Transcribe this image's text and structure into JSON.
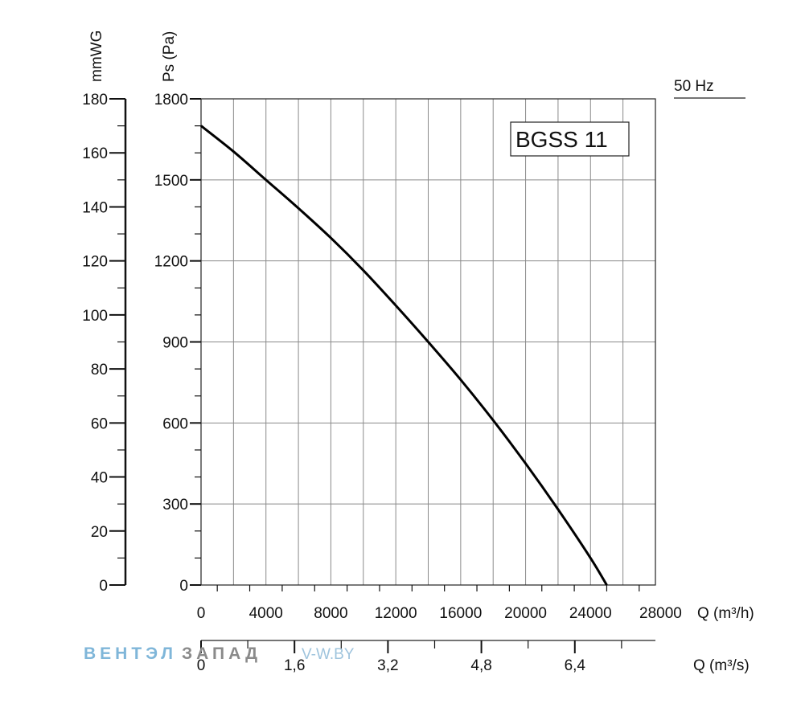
{
  "chart_data": {
    "type": "line",
    "frequency_label": "50 Hz",
    "model_label": "BGSS 11",
    "x_primary": {
      "label": "Q (m³/h)",
      "range": [
        0,
        28000
      ],
      "ticks": [
        "0",
        "4000",
        "8000",
        "12000",
        "16000",
        "20000",
        "24000",
        "28000"
      ]
    },
    "x_secondary": {
      "label": "Q (m³/s)",
      "range": [
        0,
        7.78
      ],
      "ticks": [
        {
          "value": 0,
          "label": "0"
        },
        {
          "value": 1.6,
          "label": "1,6"
        },
        {
          "value": 3.2,
          "label": "3,2"
        },
        {
          "value": 4.8,
          "label": "4,8"
        },
        {
          "value": 6.4,
          "label": "6,4"
        }
      ]
    },
    "y_primary": {
      "label": "Ps (Pa)",
      "range": [
        0,
        1800
      ],
      "ticks": [
        "0",
        "300",
        "600",
        "900",
        "1200",
        "1500",
        "1800"
      ]
    },
    "y_secondary": {
      "label": "mmWG",
      "range": [
        0,
        180
      ],
      "ticks": [
        "0",
        "20",
        "40",
        "60",
        "80",
        "100",
        "120",
        "140",
        "160",
        "180"
      ]
    },
    "grid": true,
    "series": [
      {
        "x": [
          0,
          2000,
          4000,
          6000,
          8000,
          10000,
          12000,
          14000,
          16000,
          18000,
          20000,
          22000,
          24000,
          25000
        ],
        "y": [
          1700,
          1605,
          1500,
          1395,
          1285,
          1165,
          1035,
          900,
          760,
          610,
          450,
          280,
          100,
          0
        ]
      }
    ]
  },
  "watermark": {
    "brand_part1": "ВЕНТЭЛ",
    "brand_part2": "ЗАПАД",
    "url": "V-W.BY"
  },
  "colors": {
    "watermark_blue": "#7fb6d9",
    "watermark_gray": "#8a8a8a"
  }
}
